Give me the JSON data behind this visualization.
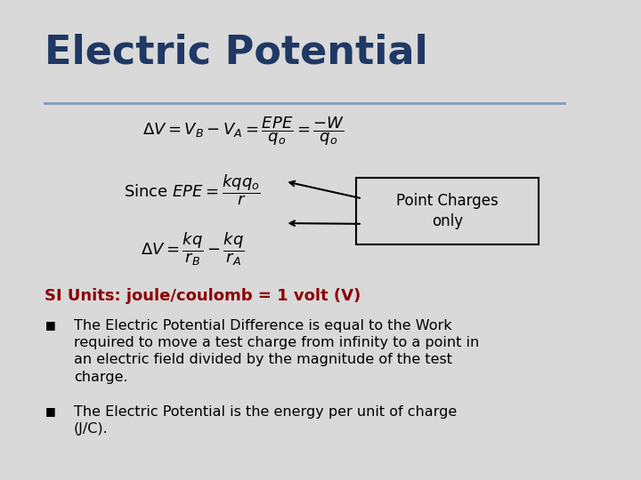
{
  "title": "Electric Potential",
  "title_color": "#1F3864",
  "title_fontsize": 32,
  "background_color": "#D9D9D9",
  "divider_color": "#7F9DB9",
  "si_units_text": "SI Units: joule/coulomb = 1 volt (V)",
  "si_units_color": "#8B0000",
  "si_units_fontsize": 13,
  "bullet1_line1": "The Electric Potential Difference is equal to the Work",
  "bullet1_line2": "required to move a test charge from infinity to a point in",
  "bullet1_line3": "an electric field divided by the magnitude of the test",
  "bullet1_line4": "charge.",
  "bullet2_line1": "The Electric Potential is the energy per unit of charge",
  "bullet2_line2": "(J/C).",
  "bullet_fontsize": 11.5,
  "bullet_color": "#000000",
  "box_text_line1": "Point Charges",
  "box_text_line2": "only",
  "box_color": "#D9D9D9",
  "box_edge_color": "#000000",
  "formula_color": "#000000",
  "formula_fontsize": 13
}
